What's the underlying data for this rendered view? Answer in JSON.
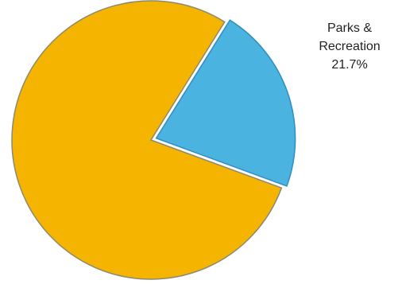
{
  "chart_data": {
    "type": "pie",
    "categories": [
      "Parks & Recreation",
      null
    ],
    "values": [
      21.7,
      78.3
    ],
    "value_labels": [
      "21.7%",
      null
    ],
    "colors": [
      "#4bb3e0",
      "#f5b400"
    ]
  }
}
